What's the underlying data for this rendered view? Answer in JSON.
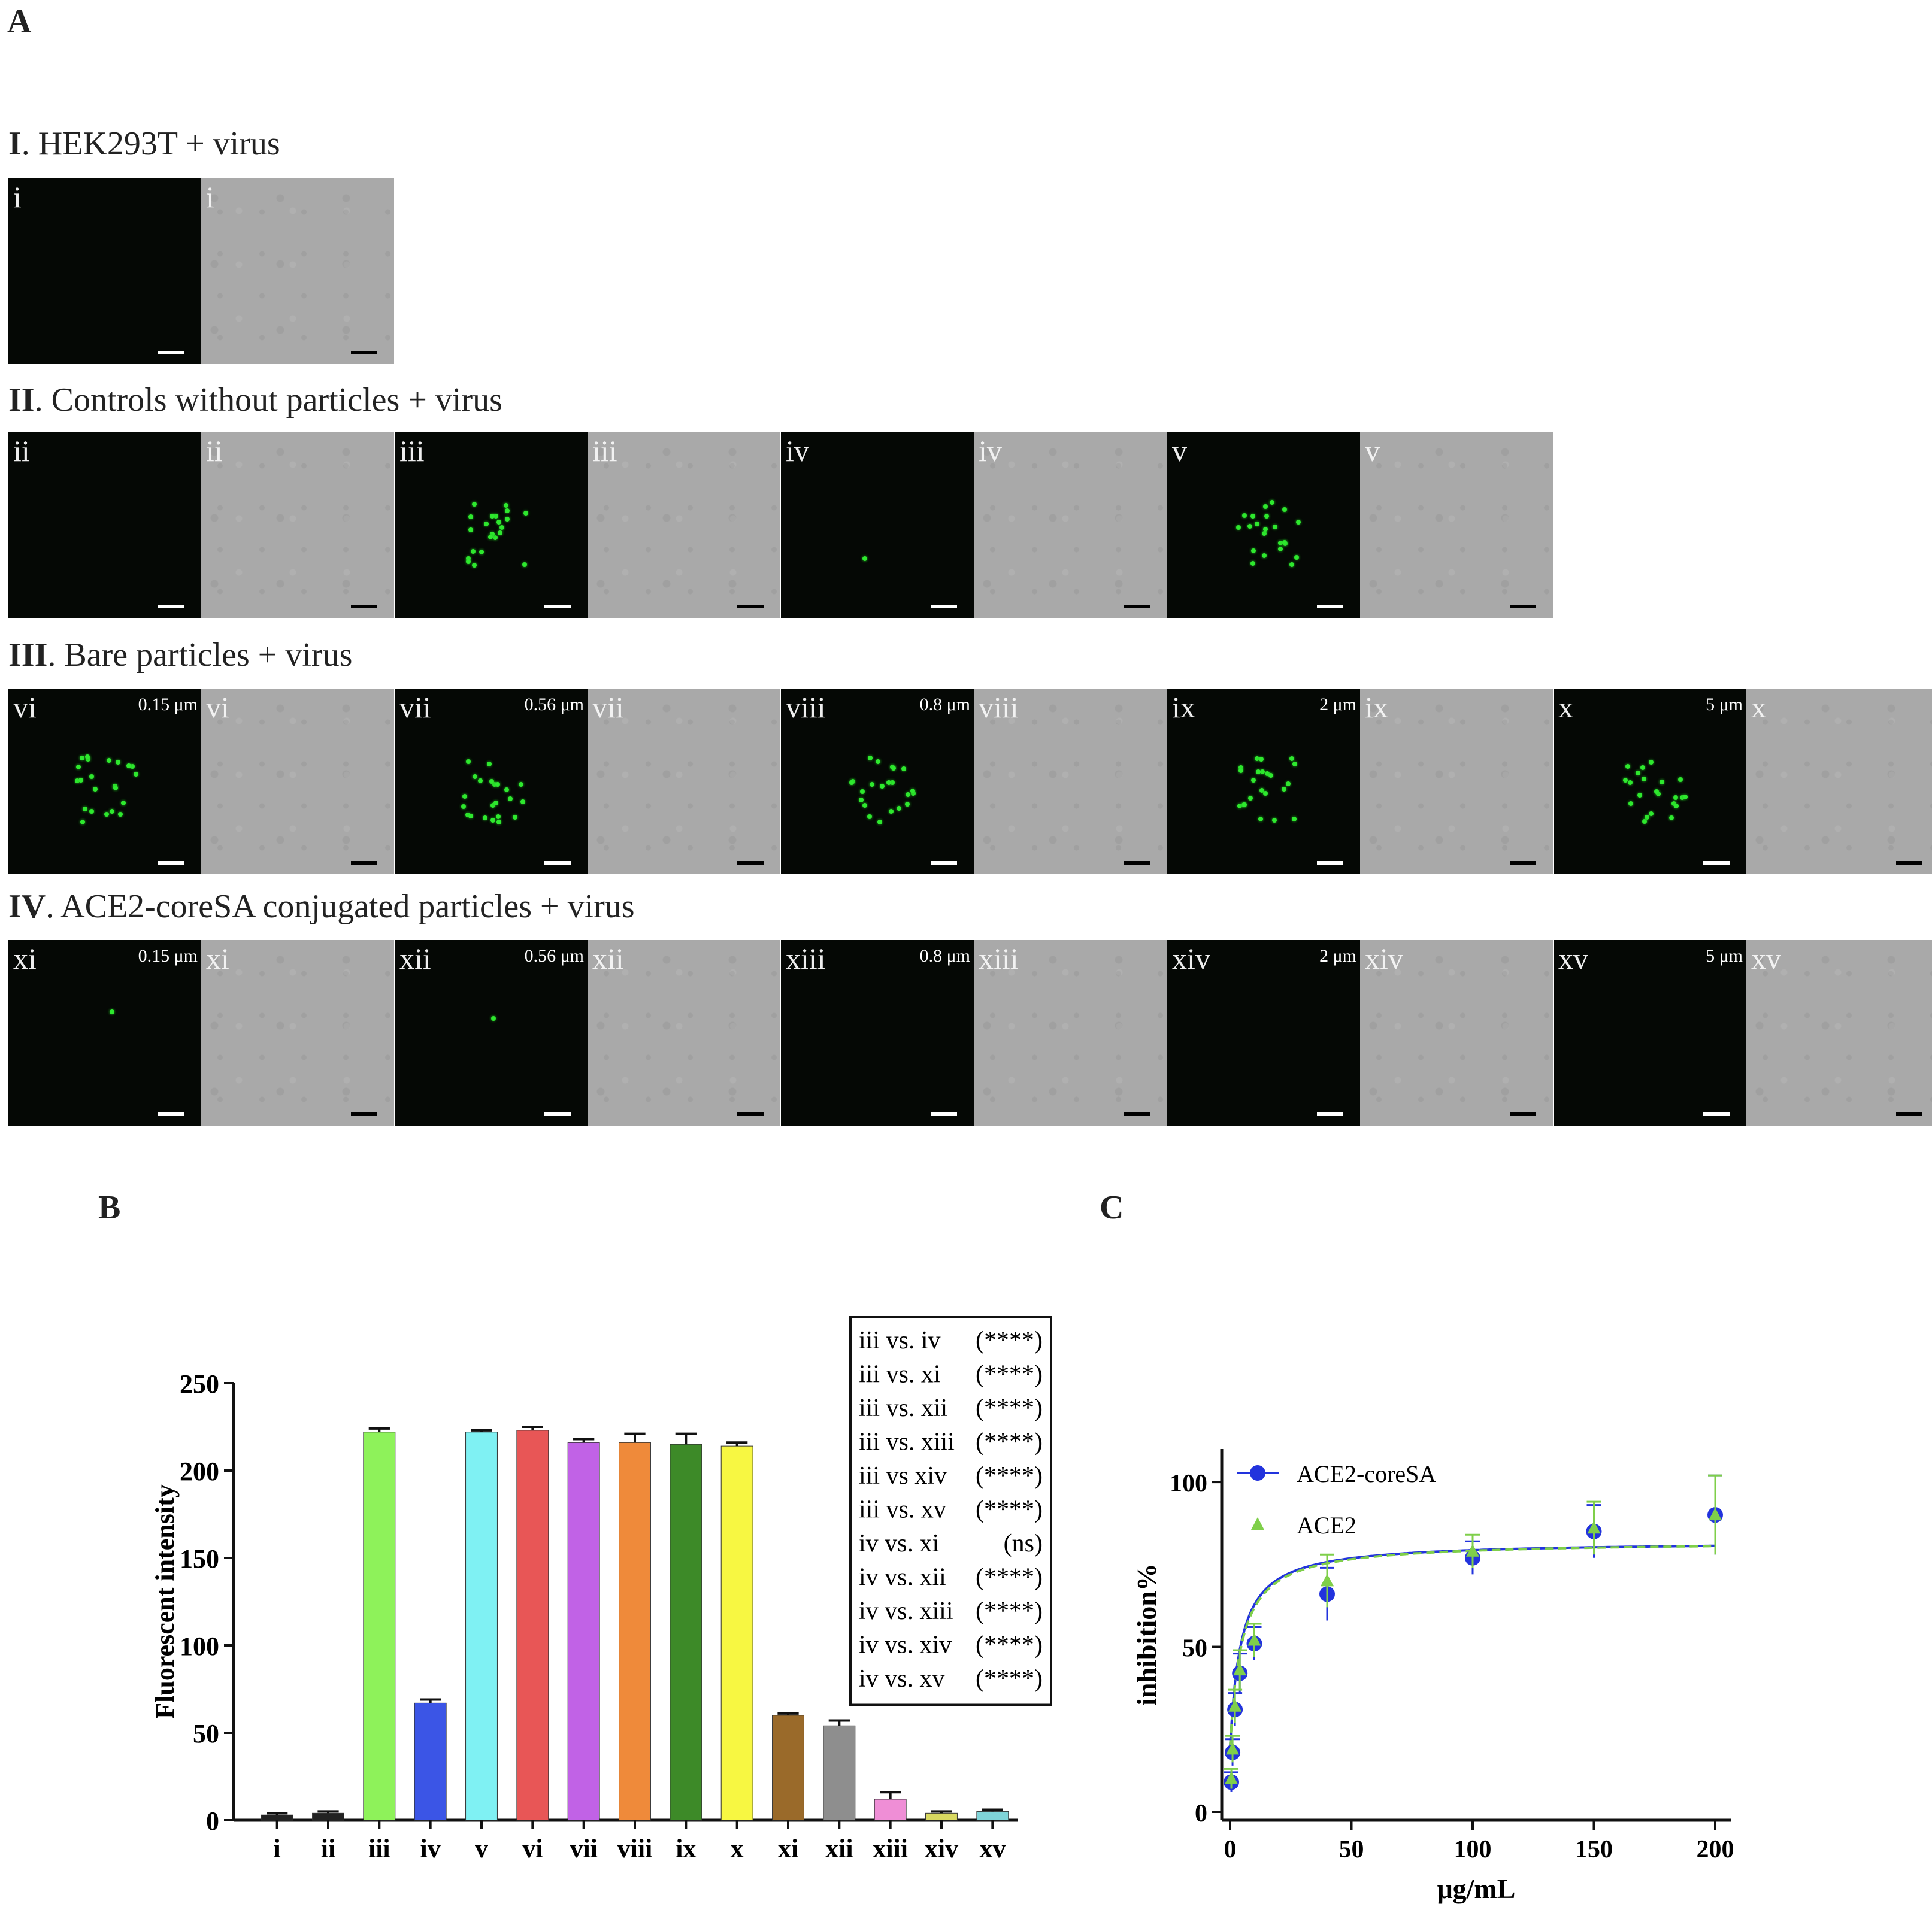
{
  "panels": {
    "A": "A",
    "B": "B",
    "C": "C"
  },
  "row_titles": [
    {
      "num": "I",
      "text": ". HEK293T + virus"
    },
    {
      "num": "II",
      "text": ". Controls without particles + virus"
    },
    {
      "num": "III",
      "text": ". Bare particles + virus"
    },
    {
      "num": "IV",
      "text": ". ACE2-coreSA conjugated particles + virus"
    }
  ],
  "tiles": [
    {
      "label": "i",
      "size": "",
      "signal": "none"
    },
    {
      "label": "ii",
      "size": "",
      "signal": "none"
    },
    {
      "label": "iii",
      "size": "",
      "signal": "high"
    },
    {
      "label": "iv",
      "size": "",
      "signal": "trace"
    },
    {
      "label": "v",
      "size": "",
      "signal": "high"
    },
    {
      "label": "vi",
      "size": "0.15 μm",
      "signal": "high"
    },
    {
      "label": "vii",
      "size": "0.56 μm",
      "signal": "high"
    },
    {
      "label": "viii",
      "size": "0.8 μm",
      "signal": "high"
    },
    {
      "label": "ix",
      "size": "2 μm",
      "signal": "high"
    },
    {
      "label": "x",
      "size": "5 μm",
      "signal": "high"
    },
    {
      "label": "xi",
      "size": "0.15 μm",
      "signal": "trace"
    },
    {
      "label": "xii",
      "size": "0.56 μm",
      "signal": "trace"
    },
    {
      "label": "xiii",
      "size": "0.8 μm",
      "signal": "none"
    },
    {
      "label": "xiv",
      "size": "2 μm",
      "signal": "none"
    },
    {
      "label": "xv",
      "size": "5 μm",
      "signal": "none"
    }
  ],
  "chart_data": [
    {
      "type": "bar",
      "ylabel": "Fluorescent intensity",
      "ylim": [
        0,
        250
      ],
      "yticks": [
        "0",
        "50",
        "100",
        "150",
        "200",
        "250"
      ],
      "categories": [
        "i",
        "ii",
        "iii",
        "iv",
        "v",
        "vi",
        "vii",
        "viii",
        "ix",
        "x",
        "xi",
        "xii",
        "xiii",
        "xiv",
        "xv"
      ],
      "values": [
        3,
        4,
        222,
        67,
        222,
        223,
        216,
        216,
        215,
        214,
        60,
        54,
        12,
        4,
        5
      ],
      "errors": [
        1,
        1,
        2,
        2,
        1,
        2,
        2,
        5,
        6,
        2,
        1,
        3,
        4,
        1,
        1
      ],
      "colors": [
        "#222222",
        "#222222",
        "#8ef25a",
        "#3b55e6",
        "#7ff1f3",
        "#e85656",
        "#c162e6",
        "#ef8a3a",
        "#3d8a28",
        "#f7f742",
        "#9a6a2a",
        "#8e8e8e",
        "#ef8ed6",
        "#d8d860",
        "#7fd4d8"
      ],
      "stats": [
        {
          "comparison": "iii vs. iv",
          "sig": "(****)"
        },
        {
          "comparison": "iii vs. xi",
          "sig": "(****)"
        },
        {
          "comparison": "iii vs. xii",
          "sig": "(****)"
        },
        {
          "comparison": "iii vs. xiii",
          "sig": "(****)"
        },
        {
          "comparison": "iii vs xiv",
          "sig": "(****)"
        },
        {
          "comparison": "iii vs. xv",
          "sig": "(****)"
        },
        {
          "comparison": "iv vs. xi",
          "sig": "(ns)"
        },
        {
          "comparison": "iv vs. xii",
          "sig": "(****)"
        },
        {
          "comparison": "iv vs. xiii",
          "sig": "(****)"
        },
        {
          "comparison": "iv vs. xiv",
          "sig": "(****)"
        },
        {
          "comparison": "iv vs. xv",
          "sig": "(****)"
        }
      ]
    },
    {
      "type": "scatter",
      "xlabel": "μg/mL",
      "ylabel": "inhibition%",
      "xlim": [
        0,
        200
      ],
      "ylim": [
        0,
        100
      ],
      "xticks": [
        "0",
        "50",
        "100",
        "150",
        "200"
      ],
      "yticks": [
        "0",
        "50",
        "100"
      ],
      "series": [
        {
          "name": "ACE2-coreSA",
          "color": "#2233dd",
          "marker": "circle",
          "x": [
            0.5,
            1,
            2,
            4,
            10,
            40,
            100,
            150,
            200
          ],
          "y": [
            9,
            18,
            31,
            42,
            51,
            66,
            77,
            85,
            90
          ],
          "err": [
            3,
            4,
            5,
            6,
            5,
            8,
            5,
            8,
            12
          ]
        },
        {
          "name": "ACE2",
          "color": "#7fcf4a",
          "marker": "triangle",
          "x": [
            0.5,
            1,
            2,
            4,
            10,
            40,
            100,
            150,
            200
          ],
          "y": [
            10,
            19,
            32,
            43,
            52,
            70,
            79,
            86,
            90
          ],
          "err": [
            3,
            4,
            5,
            6,
            5,
            8,
            5,
            8,
            12
          ]
        }
      ]
    }
  ]
}
